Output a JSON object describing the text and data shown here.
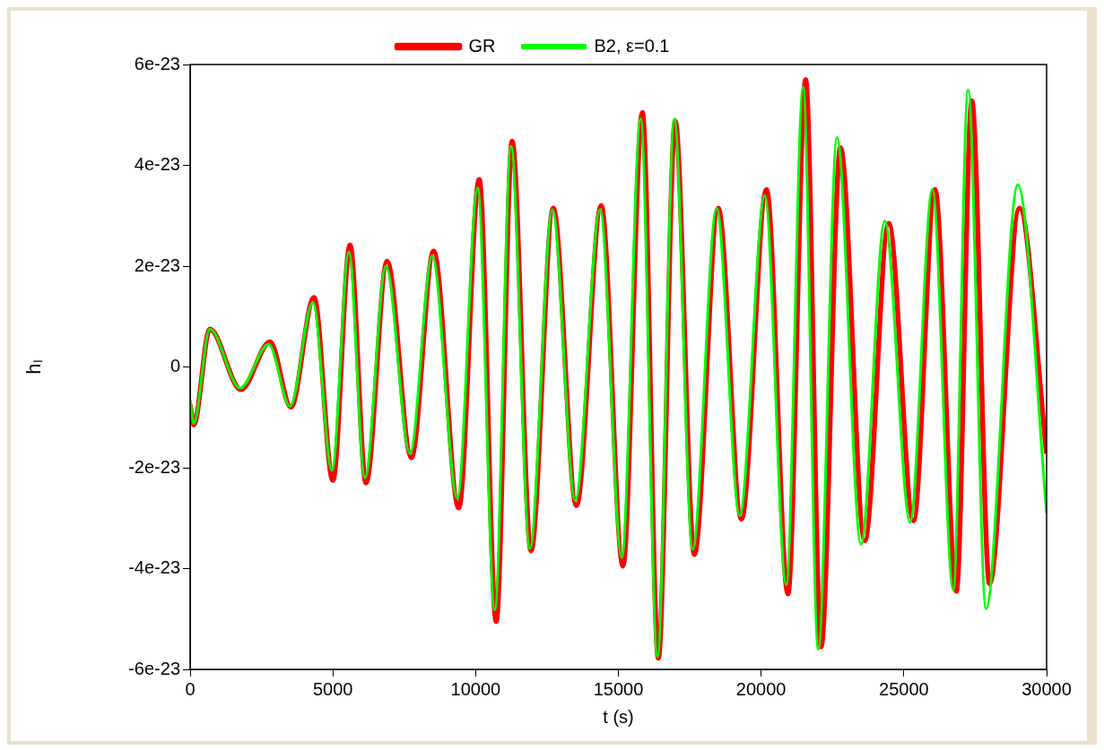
{
  "chart_data": {
    "type": "line",
    "xlabel": "t (s)",
    "ylabel": "hₗ",
    "xlim": [
      0,
      30000
    ],
    "xticks": [
      0,
      5000,
      10000,
      15000,
      20000,
      25000,
      30000
    ],
    "ylim": [
      -6e-23,
      6e-23
    ],
    "yticks": [
      -6e-23,
      -4e-23,
      -2e-23,
      0,
      2e-23,
      4e-23,
      6e-23
    ],
    "grid": false,
    "legend": "top",
    "marker": "none",
    "line_style": "solid",
    "series": [
      {
        "name": "GR",
        "color": "#ff0000",
        "x": [
          0,
          125,
          690,
          1780,
          2800,
          3530,
          4340,
          5000,
          5600,
          6160,
          6900,
          7750,
          8530,
          9410,
          10125,
          10720,
          11280,
          11940,
          12720,
          13530,
          14400,
          15160,
          15840,
          16400,
          16990,
          17660,
          18500,
          19310,
          20190,
          20940,
          21560,
          22100,
          22780,
          23630,
          24470,
          25340,
          26090,
          26840,
          27380,
          28000,
          29050,
          30000
        ],
        "values": [
          -7.5e-24,
          -1.15e-23,
          7.5e-24,
          -4.5e-24,
          5e-24,
          -8e-24,
          1.38e-23,
          -2.25e-23,
          2.42e-23,
          -2.3e-23,
          2.1e-23,
          -1.8e-23,
          2.3e-23,
          -2.8e-23,
          3.72e-23,
          -5.05e-23,
          4.48e-23,
          -3.65e-23,
          3.15e-23,
          -2.75e-23,
          3.2e-23,
          -3.95e-23,
          5.05e-23,
          -5.78e-23,
          4.88e-23,
          -3.72e-23,
          3.15e-23,
          -3.02e-23,
          3.52e-23,
          -4.5e-23,
          5.7e-23,
          -5.55e-23,
          4.35e-23,
          -3.45e-23,
          2.85e-23,
          -3.05e-23,
          3.52e-23,
          -4.45e-23,
          5.28e-23,
          -4.3e-23,
          3.15e-23,
          -1.72e-23
        ]
      },
      {
        "name": "B2, ε=0.1",
        "color": "#00ff00",
        "x": [
          0,
          125,
          690,
          1750,
          2750,
          3500,
          4300,
          4970,
          5560,
          6120,
          6860,
          7700,
          8480,
          9360,
          10070,
          10670,
          11240,
          11900,
          12690,
          13490,
          14360,
          15120,
          15780,
          16370,
          16960,
          17600,
          18440,
          19250,
          20130,
          20880,
          21470,
          22000,
          22660,
          23500,
          24330,
          25220,
          26000,
          26730,
          27250,
          27880,
          28990,
          30000
        ],
        "values": [
          -6.5e-24,
          -1.12e-23,
          7.5e-24,
          -4.2e-24,
          4.5e-24,
          -7.8e-24,
          1.28e-23,
          -2.05e-23,
          2.28e-23,
          -2.2e-23,
          2e-23,
          -1.72e-23,
          2.2e-23,
          -2.6e-23,
          3.55e-23,
          -4.82e-23,
          4.38e-23,
          -3.6e-23,
          3.12e-23,
          -2.65e-23,
          3.12e-23,
          -3.78e-23,
          4.92e-23,
          -5.75e-23,
          4.92e-23,
          -3.62e-23,
          3.15e-23,
          -2.95e-23,
          3.4e-23,
          -4.32e-23,
          5.55e-23,
          -5.6e-23,
          4.55e-23,
          -3.52e-23,
          2.9e-23,
          -3.08e-23,
          3.52e-23,
          -4.42e-23,
          5.5e-23,
          -4.8e-23,
          3.62e-23,
          -2.9e-23
        ]
      }
    ]
  }
}
